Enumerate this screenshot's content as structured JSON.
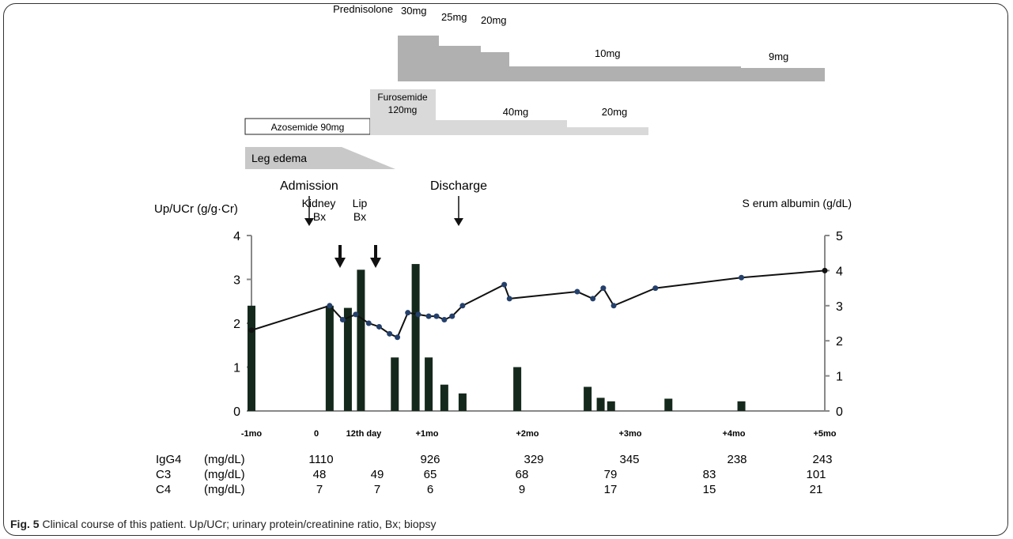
{
  "caption": {
    "label": "Fig. 5",
    "text": "Clinical course of this patient. Up/UCr; urinary protein/creatinine ratio, Bx; biopsy"
  },
  "treatment": {
    "prednisolone_label": "Prednisolone",
    "prednisolone_doses": [
      "30mg",
      "25mg",
      "20mg",
      "10mg",
      "9mg"
    ],
    "azosemide_label": "Azosemide 90mg",
    "furosemide_label_1": "Furosemide",
    "furosemide_label_2": "120mg",
    "furosemide_doses": [
      "40mg",
      "20mg"
    ],
    "leg_edema_label": "Leg edema"
  },
  "events": {
    "admission": "Admission",
    "kidney_bx_1": "Kidney",
    "kidney_bx_2": "Bx",
    "lip_bx_1": "Lip",
    "lip_bx_2": "Bx",
    "discharge": "Discharge"
  },
  "labs": {
    "rows": [
      {
        "label": "IgG4",
        "unit": "(mg/dL)",
        "values": [
          "1110",
          "926",
          "329",
          "345",
          "238",
          "243"
        ]
      },
      {
        "label": "C3",
        "unit": "(mg/dL)",
        "values": [
          "48",
          "49",
          "65",
          "68",
          "79",
          "83",
          "101"
        ]
      },
      {
        "label": "C4",
        "unit": "(mg/dL)",
        "values": [
          "7",
          "7",
          "6",
          "9",
          "17",
          "15",
          "21"
        ]
      }
    ]
  },
  "chart_data": {
    "type": "bar",
    "left_axis_label": "Up/UCr (g/g·Cr)",
    "right_axis_label": "S erum albumin (g/dL)",
    "left_ylim": [
      0,
      4
    ],
    "right_ylim": [
      0,
      5
    ],
    "left_ticks": [
      "0",
      "1",
      "2",
      "3",
      "4"
    ],
    "right_ticks": [
      "0",
      "1",
      "2",
      "3",
      "4",
      "5"
    ],
    "x_tick_labels": [
      "-1mo",
      "0",
      "12th day",
      "+1mo",
      "+2mo",
      "+3mo",
      "+4mo",
      "+5mo"
    ],
    "series": [
      {
        "name": "Up/UCr",
        "kind": "bar",
        "x_days": [
          -30,
          0,
          7,
          12,
          25,
          33,
          38,
          44,
          51,
          72,
          99,
          104,
          108,
          130,
          158
        ],
        "values": [
          2.4,
          2.4,
          2.35,
          3.22,
          1.22,
          3.35,
          1.22,
          0.6,
          0.4,
          1.0,
          0.55,
          0.3,
          0.22,
          0.28,
          0.22
        ]
      },
      {
        "name": "Serum albumin",
        "kind": "line",
        "x_days": [
          -30,
          0,
          5,
          10,
          15,
          19,
          23,
          26,
          30,
          34,
          38,
          41,
          44,
          47,
          51,
          67,
          69,
          95,
          101,
          105,
          109,
          125,
          158,
          190
        ],
        "values": [
          2.3,
          3.0,
          2.6,
          2.75,
          2.5,
          2.4,
          2.2,
          2.1,
          2.8,
          2.75,
          2.7,
          2.7,
          2.6,
          2.7,
          3.0,
          3.6,
          3.2,
          3.4,
          3.2,
          3.5,
          3.0,
          3.5,
          3.8,
          4.0
        ]
      }
    ]
  }
}
